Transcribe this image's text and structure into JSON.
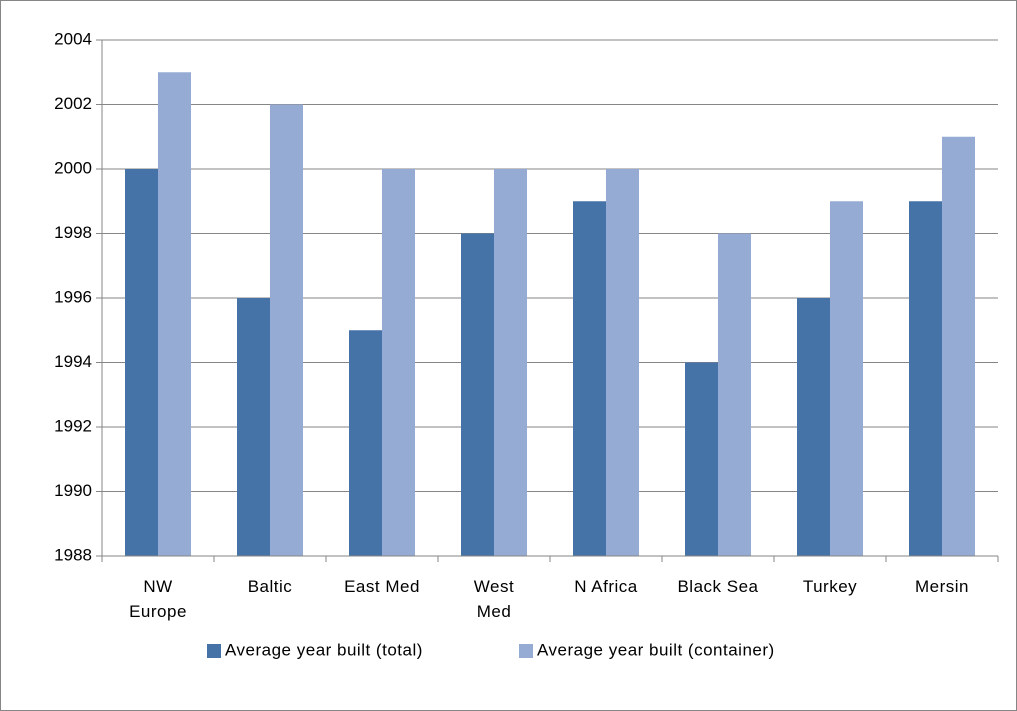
{
  "chart_data": {
    "type": "bar",
    "categories": [
      "NW\nEurope",
      "Baltic",
      "East Med",
      "West\nMed",
      "N Africa",
      "Black Sea",
      "Turkey",
      "Mersin"
    ],
    "series": [
      {
        "name": "Average year built (total)",
        "color": "#4572a7",
        "values": [
          2000,
          1996,
          1995,
          1998,
          1999,
          1994,
          1996,
          1999
        ]
      },
      {
        "name": "Average year built (container)",
        "color": "#95abd3",
        "values": [
          2003,
          2002,
          2000,
          2000,
          2000,
          1998,
          1999,
          2001
        ]
      }
    ],
    "ylim": [
      1988,
      2004
    ],
    "yticks": [
      1988,
      1990,
      1992,
      1994,
      1996,
      1998,
      2000,
      2002,
      2004
    ],
    "grid": true,
    "legend": "bottom"
  }
}
